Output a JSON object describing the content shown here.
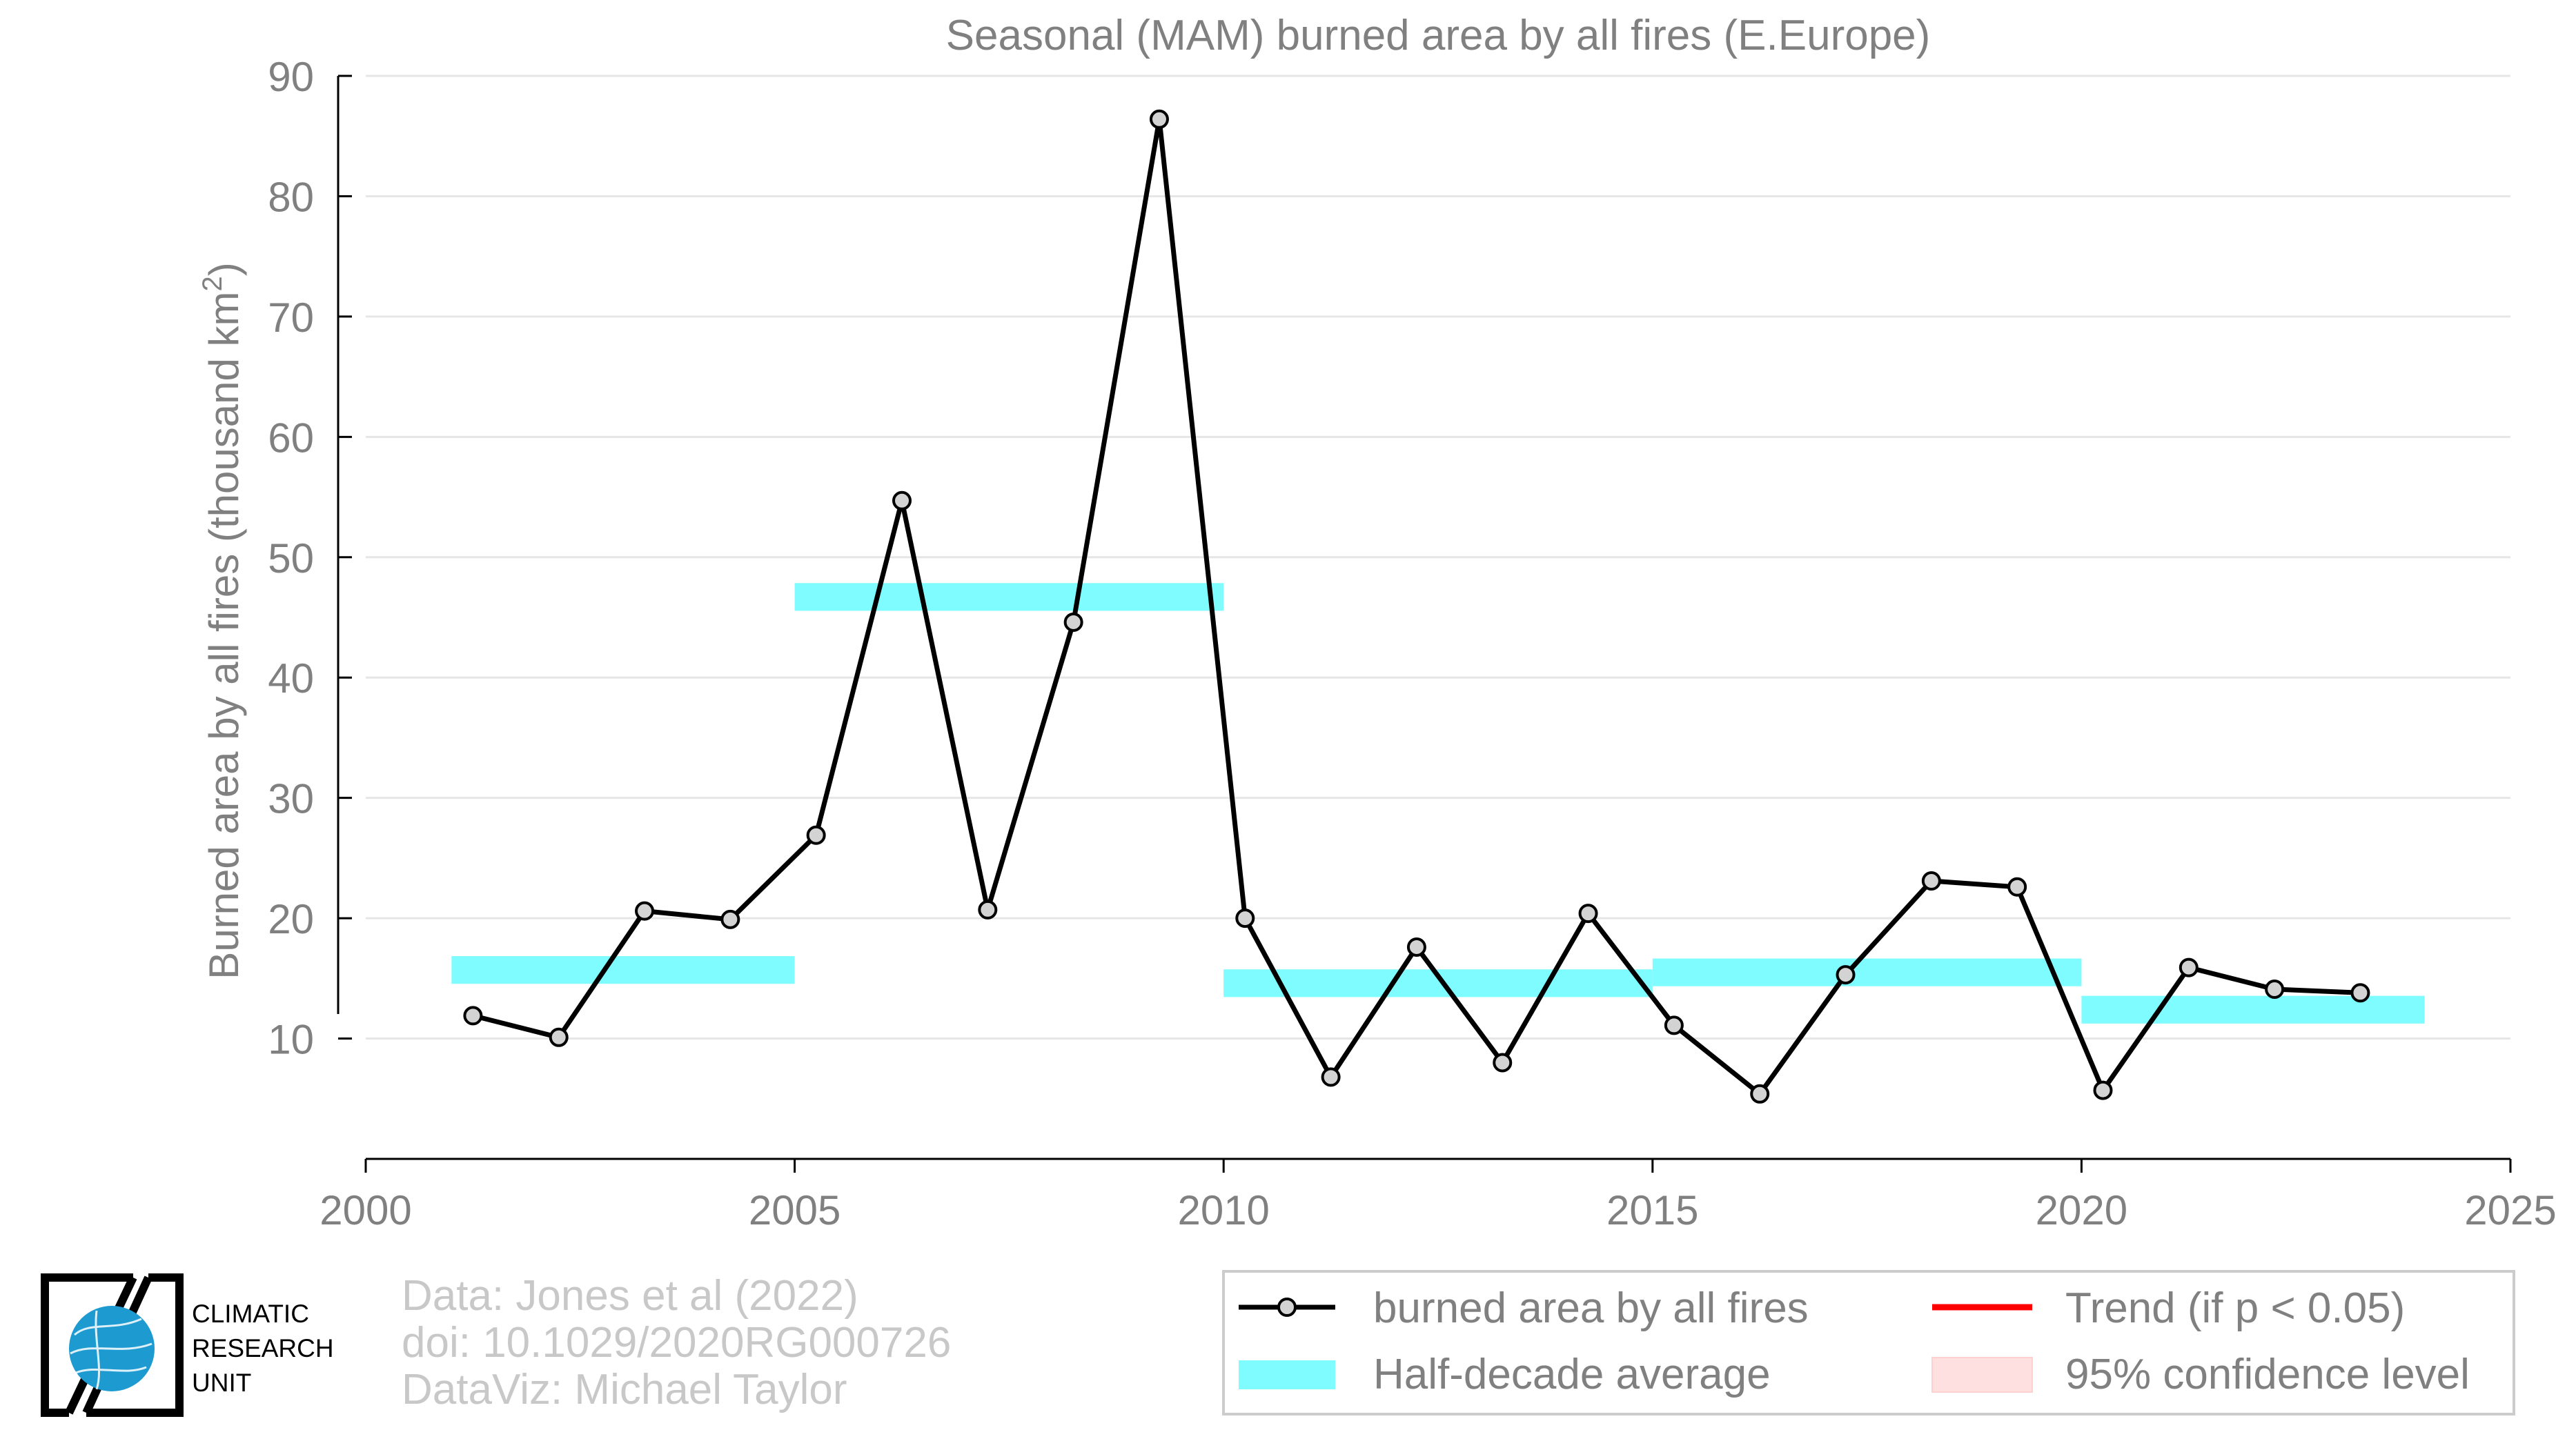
{
  "chart_data": {
    "type": "line",
    "title": "Seasonal (MAM) burned area by all fires (E.Europe)",
    "ylabel_main": "Burned area by all fires (thousand km",
    "ylabel_sup": "2",
    "ylabel_close": ")",
    "xlabel": "",
    "xlim": [
      2000,
      2025
    ],
    "ylim": [
      0,
      90
    ],
    "xticks": [
      "2000",
      "2005",
      "2010",
      "2015",
      "2020",
      "2025"
    ],
    "yticks": [
      "10",
      "20",
      "30",
      "40",
      "50",
      "60",
      "70",
      "80",
      "90"
    ],
    "grid": true,
    "series": [
      {
        "name": "burned area by all fires",
        "x": [
          2001.25,
          2002.25,
          2003.25,
          2004.25,
          2005.25,
          2006.25,
          2007.25,
          2008.25,
          2009.25,
          2010.25,
          2011.25,
          2012.25,
          2013.25,
          2014.25,
          2015.25,
          2016.25,
          2017.25,
          2018.25,
          2019.25,
          2020.25,
          2021.25,
          2022.25,
          2023.25
        ],
        "values": [
          11.9,
          10.1,
          20.6,
          19.9,
          26.9,
          54.7,
          20.7,
          44.6,
          86.4,
          20.0,
          6.8,
          17.6,
          8.0,
          20.4,
          11.1,
          5.4,
          15.3,
          23.1,
          22.6,
          5.7,
          15.9,
          14.1,
          13.8
        ],
        "color": "#000000",
        "marker_fill": "#d3d3d3"
      }
    ],
    "half_decade_average": {
      "name": "Half-decade average",
      "color": "#7ffcff",
      "segments": [
        {
          "x_start": 2001,
          "x_end": 2005,
          "value": 15.7
        },
        {
          "x_start": 2005,
          "x_end": 2010,
          "value": 46.7
        },
        {
          "x_start": 2010,
          "x_end": 2015,
          "value": 14.6
        },
        {
          "x_start": 2015,
          "x_end": 2020,
          "value": 15.5
        },
        {
          "x_start": 2020,
          "x_end": 2024,
          "value": 12.4
        }
      ]
    },
    "legend": {
      "placement": "bottom-right",
      "entries": [
        {
          "label": "burned area by all fires",
          "kind": "line-marker",
          "color": "#000000"
        },
        {
          "label": "Trend (if p < 0.05)",
          "kind": "line",
          "color": "#ff0000"
        },
        {
          "label": "Half-decade average",
          "kind": "band",
          "color": "#7ffcff"
        },
        {
          "label": "95% confidence level",
          "kind": "band",
          "color": "#ffe0e0"
        }
      ]
    }
  },
  "logo": {
    "lines": [
      "CLIMATIC",
      "RESEARCH",
      "UNIT"
    ],
    "icon": "globe-icon"
  },
  "credits": {
    "data": "Data: Jones et al (2022)",
    "doi": "doi: 10.1029/2020RG000726",
    "dataviz": "DataViz: Michael Taylor"
  },
  "colors": {
    "axis_text": "#808080",
    "grid": "#e6e6e6",
    "credits_text": "#c8c8c8"
  }
}
